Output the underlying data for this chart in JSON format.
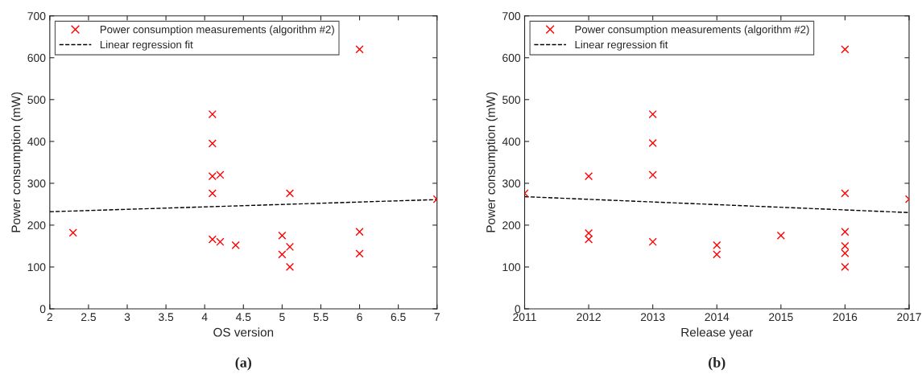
{
  "chart_data": [
    {
      "type": "scatter",
      "xlabel": "OS version",
      "ylabel": "Power consumption (mW)",
      "annotations": [
        "(a)"
      ],
      "xlim": [
        2,
        7
      ],
      "xticks": [
        2,
        2.5,
        3,
        3.5,
        4,
        4.5,
        5,
        5.5,
        6,
        6.5,
        7
      ],
      "ylim": [
        0,
        700
      ],
      "yticks": [
        0,
        100,
        200,
        300,
        400,
        500,
        600,
        700
      ],
      "grid": false,
      "legend": "top left",
      "series": [
        {
          "name": "Power consumption measurements (algorithm #2)",
          "type": "scatter",
          "marker": "cross",
          "color": "#ff0000",
          "x": [
            2.3,
            4.1,
            4.1,
            4.1,
            4.2,
            4.1,
            4.1,
            4.2,
            4.4,
            5,
            5,
            5.1,
            5.1,
            5.1,
            6,
            6,
            6,
            7
          ],
          "values": [
            182,
            465,
            395,
            317,
            320,
            276,
            166,
            160,
            152,
            175,
            130,
            276,
            148,
            100,
            620,
            184,
            132,
            262
          ]
        },
        {
          "name": "Linear regression fit",
          "type": "line",
          "line_style": "dashed",
          "color": "#000000",
          "x": [
            2,
            7
          ],
          "values": [
            232,
            261
          ]
        }
      ]
    },
    {
      "type": "scatter",
      "xlabel": "Release year",
      "ylabel": "Power consumption (mW)",
      "annotations": [
        "(b)"
      ],
      "xlim": [
        2011,
        2017
      ],
      "xticks": [
        2011,
        2012,
        2013,
        2014,
        2015,
        2016,
        2017
      ],
      "ylim": [
        0,
        700
      ],
      "yticks": [
        0,
        100,
        200,
        300,
        400,
        500,
        600,
        700
      ],
      "grid": false,
      "legend": "top left",
      "series": [
        {
          "name": "Power consumption measurements (algorithm #2)",
          "type": "scatter",
          "marker": "cross",
          "color": "#ff0000",
          "x": [
            2011,
            2012,
            2012,
            2012,
            2013,
            2013,
            2013,
            2013,
            2014,
            2014,
            2015,
            2016,
            2016,
            2016,
            2016,
            2016,
            2016,
            2017
          ],
          "values": [
            276,
            317,
            181,
            166,
            465,
            396,
            320,
            160,
            152,
            130,
            175,
            620,
            276,
            184,
            150,
            133,
            100,
            262
          ]
        },
        {
          "name": "Linear regression fit",
          "type": "line",
          "line_style": "dashed",
          "color": "#000000",
          "x": [
            2011,
            2017
          ],
          "values": [
            268,
            230
          ]
        }
      ]
    }
  ]
}
